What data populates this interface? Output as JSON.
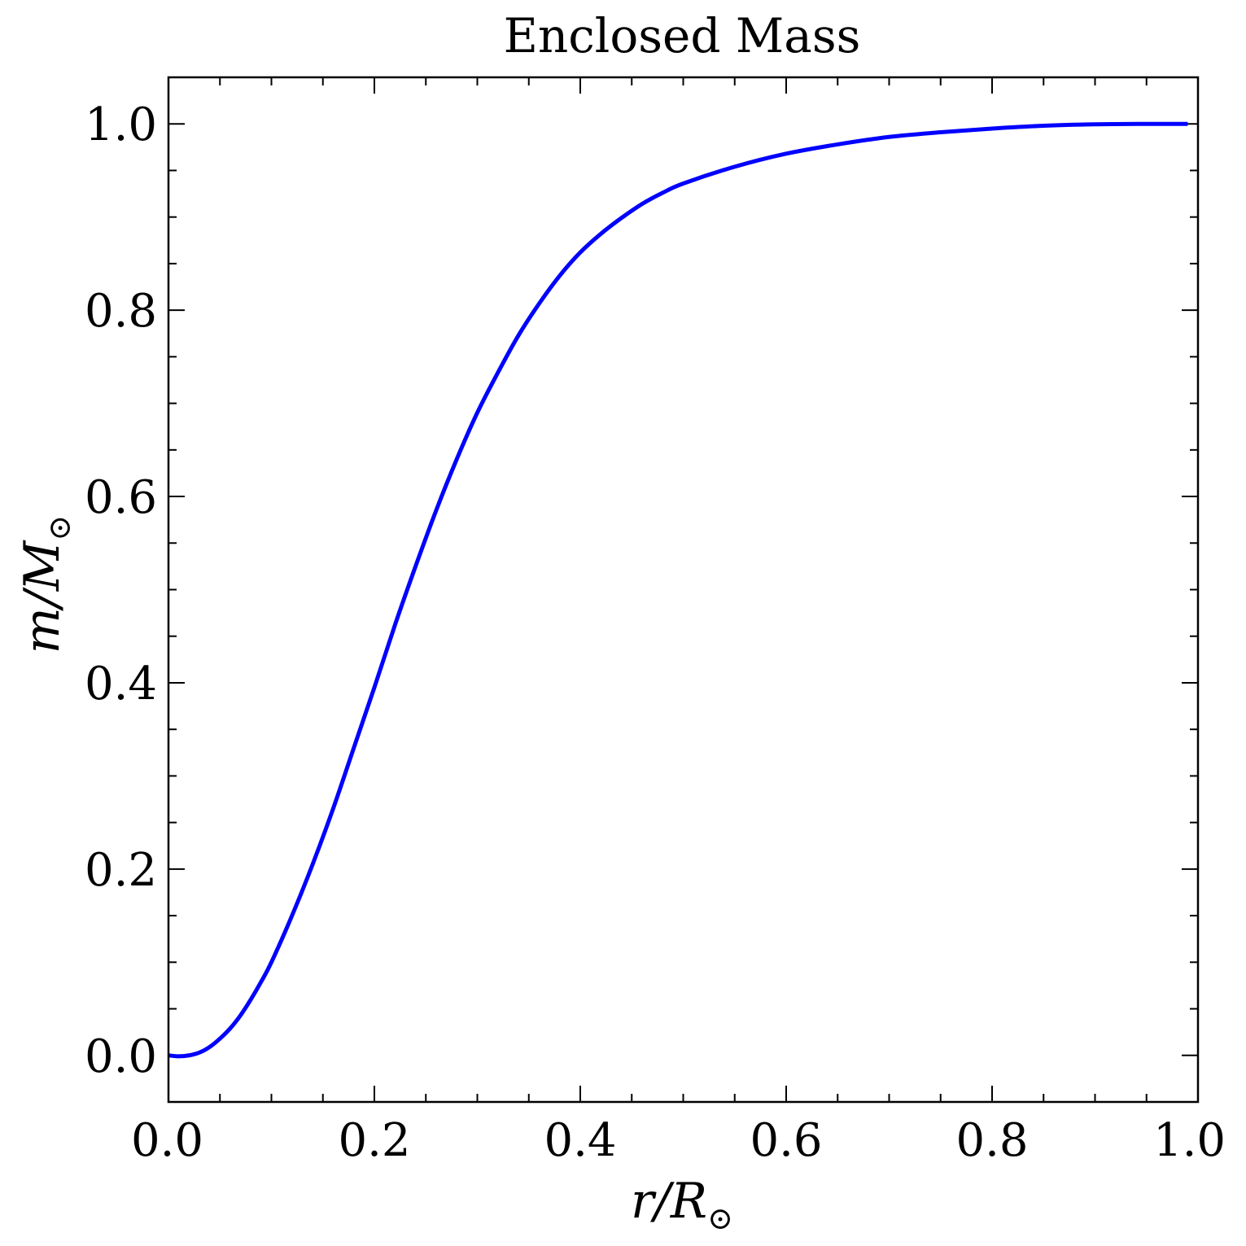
{
  "chart_data": {
    "type": "line",
    "title": "Enclosed Mass",
    "xlabel": {
      "base": "r/R",
      "sub": "⊙"
    },
    "ylabel": {
      "base": "m/M",
      "sub": "⊙"
    },
    "xlim": [
      0.0,
      1.0
    ],
    "ylim": [
      -0.05,
      1.05
    ],
    "xticks": [
      0.0,
      0.2,
      0.4,
      0.6,
      0.8,
      1.0
    ],
    "yticks": [
      0.0,
      0.2,
      0.4,
      0.6,
      0.8,
      1.0
    ],
    "xtick_labels": [
      "0.0",
      "0.2",
      "0.4",
      "0.6",
      "0.8",
      "1.0"
    ],
    "ytick_labels": [
      "0.0",
      "0.2",
      "0.4",
      "0.6",
      "0.8",
      "1.0"
    ],
    "x_minor_step": 0.05,
    "y_minor_step": 0.05,
    "grid": false,
    "line_color": "#0000ff",
    "series": [
      {
        "x": [
          0.0,
          0.01,
          0.02,
          0.03,
          0.04,
          0.05,
          0.06,
          0.07,
          0.08,
          0.09,
          0.1,
          0.12,
          0.14,
          0.16,
          0.18,
          0.2,
          0.22,
          0.24,
          0.26,
          0.28,
          0.3,
          0.32,
          0.34,
          0.36,
          0.38,
          0.4,
          0.42,
          0.44,
          0.46,
          0.48,
          0.5,
          0.55,
          0.6,
          0.65,
          0.7,
          0.75,
          0.8,
          0.85,
          0.9,
          0.95,
          0.98,
          0.99
        ],
        "y": [
          0.0,
          -0.001,
          0.0,
          0.003,
          0.009,
          0.018,
          0.029,
          0.043,
          0.06,
          0.079,
          0.1,
          0.15,
          0.205,
          0.265,
          0.33,
          0.395,
          0.462,
          0.525,
          0.585,
          0.64,
          0.69,
          0.733,
          0.773,
          0.807,
          0.837,
          0.862,
          0.882,
          0.899,
          0.914,
          0.926,
          0.936,
          0.954,
          0.968,
          0.978,
          0.986,
          0.991,
          0.995,
          0.998,
          0.9995,
          1.0,
          1.0,
          1.0
        ]
      }
    ]
  }
}
